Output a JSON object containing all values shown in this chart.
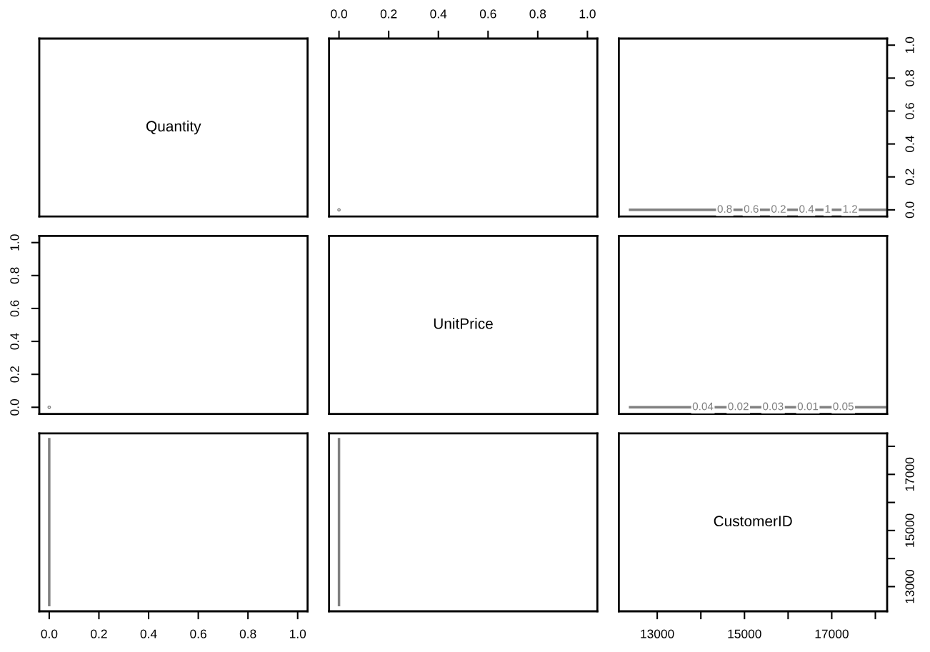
{
  "chart_data": [
    {
      "type": "other",
      "title": "Quantity"
    },
    {
      "type": "scatter",
      "xlim": [
        -0.04,
        1.04
      ],
      "ylim": [
        -0.04,
        1.04
      ],
      "xticks": [
        {
          "value": 0,
          "label": "0.0"
        },
        0.2,
        0.4,
        0.6,
        0.8,
        {
          "value": 1,
          "label": "1.0"
        }
      ],
      "tick_labels": "x",
      "marker": "circle",
      "series": [
        {
          "color": "#808080",
          "x": [
            0
          ],
          "values": [
            0
          ]
        }
      ]
    },
    {
      "type": "line",
      "xlim": [
        12120,
        18270
      ],
      "ylim": [
        -0.04,
        1.04
      ],
      "yticks": [
        {
          "value": 0,
          "label": "0.0"
        },
        0.2,
        0.4,
        0.6,
        0.8,
        {
          "value": 1,
          "label": "1.0"
        }
      ],
      "tick_labels": "y",
      "series": [
        {
          "color": "#808080",
          "x": [
            12350,
            18250
          ],
          "values": [
            0,
            0
          ]
        }
      ],
      "annotations": [
        {
          "text": "0.8",
          "x": 14547,
          "y": 0
        },
        {
          "text": "0.6",
          "x": 15156,
          "y": 0
        },
        {
          "text": "0.2",
          "x": 15781,
          "y": 0
        },
        {
          "text": "0.4",
          "x": 16422,
          "y": 0
        },
        {
          "text": "1",
          "x": 16906,
          "y": 0
        },
        {
          "text": "1.2",
          "x": 17422,
          "y": 0
        }
      ]
    },
    {
      "type": "scatter",
      "xlim": [
        -0.04,
        1.04
      ],
      "ylim": [
        -0.04,
        1.04
      ],
      "yticks": [
        {
          "value": 0,
          "label": "0.0"
        },
        0.2,
        0.4,
        0.6,
        0.8,
        {
          "value": 1,
          "label": "1.0"
        }
      ],
      "tick_labels": "y",
      "marker": "circle",
      "series": [
        {
          "color": "#808080",
          "x": [
            0
          ],
          "values": [
            0
          ]
        }
      ]
    },
    {
      "type": "other",
      "title": "UnitPrice"
    },
    {
      "type": "line",
      "xlim": [
        12120,
        18270
      ],
      "ylim": [
        -0.04,
        1.04
      ],
      "tick_labels": false,
      "series": [
        {
          "color": "#808080",
          "x": [
            12350,
            18250
          ],
          "values": [
            0,
            0
          ]
        }
      ],
      "annotations": [
        {
          "text": "0.04",
          "x": 14047,
          "y": 0
        },
        {
          "text": "0.02",
          "x": 14859,
          "y": 0
        },
        {
          "text": "0.03",
          "x": 15656,
          "y": 0
        },
        {
          "text": "0.01",
          "x": 16453,
          "y": 0
        },
        {
          "text": "0.05",
          "x": 17266,
          "y": 0
        }
      ]
    },
    {
      "type": "line",
      "xlim": [
        -0.04,
        1.04
      ],
      "ylim": [
        12120,
        18460
      ],
      "xticks": [
        {
          "value": 0,
          "label": "0.0"
        },
        0.2,
        0.4,
        0.6,
        0.8,
        {
          "value": 1,
          "label": "1.0"
        }
      ],
      "tick_labels": "x",
      "series": [
        {
          "color": "#808080",
          "x": [
            0,
            0,
            0
          ],
          "values": [
            12300,
            15000,
            18300
          ]
        }
      ]
    },
    {
      "type": "line",
      "xlim": [
        -0.04,
        1.04
      ],
      "ylim": [
        12120,
        18460
      ],
      "tick_labels": false,
      "series": [
        {
          "color": "#808080",
          "x": [
            0,
            0,
            0
          ],
          "values": [
            12300,
            15000,
            18300
          ]
        }
      ]
    },
    {
      "type": "line",
      "title": "CustomerID",
      "xlim": [
        12120,
        18270
      ],
      "ylim": [
        12120,
        18460
      ],
      "xticks": [
        13000,
        {
          "value": 14000,
          "label": null
        },
        15000,
        {
          "value": 16000,
          "label": null
        },
        17000,
        {
          "value": 18000,
          "label": null
        }
      ],
      "yticks": [
        13000,
        {
          "value": 14000,
          "label": null
        },
        15000,
        {
          "value": 16000,
          "label": null
        },
        17000,
        {
          "value": 18000,
          "label": null
        }
      ]
    }
  ]
}
